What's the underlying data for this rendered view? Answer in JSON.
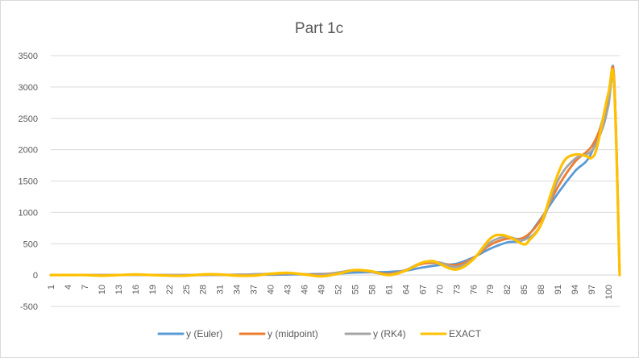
{
  "chart_data": {
    "type": "line",
    "title": "Part 1c",
    "xlabel": "",
    "ylabel": "",
    "x_tick_labels": [
      "1",
      "4",
      "7",
      "10",
      "13",
      "16",
      "19",
      "22",
      "25",
      "28",
      "31",
      "34",
      "37",
      "40",
      "43",
      "46",
      "49",
      "52",
      "55",
      "58",
      "61",
      "64",
      "67",
      "70",
      "73",
      "76",
      "79",
      "82",
      "85",
      "88",
      "91",
      "94",
      "97",
      "100"
    ],
    "x_tick_positions": [
      1,
      4,
      7,
      10,
      13,
      16,
      19,
      22,
      25,
      28,
      31,
      34,
      37,
      40,
      43,
      46,
      49,
      52,
      55,
      58,
      61,
      64,
      67,
      70,
      73,
      76,
      79,
      82,
      85,
      88,
      91,
      94,
      97,
      100
    ],
    "xlim": [
      1,
      102
    ],
    "ylim": [
      -500,
      3500
    ],
    "y_ticks": [
      -500,
      0,
      500,
      1000,
      1500,
      2000,
      2500,
      3000,
      3500
    ],
    "y_tick_labels": [
      "-500",
      "0",
      "500",
      "1000",
      "1500",
      "2000",
      "2500",
      "3000",
      "3500"
    ],
    "grid": true,
    "legend_position": "bottom",
    "series": [
      {
        "name": "y (Euler)",
        "color": "#5b9bd5",
        "x": [
          1,
          10,
          20,
          30,
          40,
          44,
          48,
          52,
          55,
          58,
          61,
          64,
          67,
          70,
          73,
          76,
          79,
          82,
          85,
          88,
          91,
          94,
          97,
          100,
          101,
          102
        ],
        "y": [
          0,
          0,
          0,
          0,
          5,
          10,
          15,
          25,
          40,
          45,
          50,
          70,
          120,
          160,
          180,
          280,
          420,
          520,
          570,
          900,
          1300,
          1650,
          1950,
          2800,
          3150,
          0
        ]
      },
      {
        "name": "y (midpoint)",
        "color": "#ed7d31",
        "x": [
          1,
          10,
          20,
          30,
          40,
          44,
          48,
          52,
          55,
          58,
          61,
          64,
          67,
          70,
          73,
          76,
          79,
          82,
          85,
          88,
          91,
          94,
          97,
          99,
          100,
          101,
          102
        ],
        "y": [
          0,
          0,
          0,
          0,
          15,
          25,
          5,
          40,
          75,
          50,
          20,
          80,
          180,
          190,
          160,
          270,
          480,
          580,
          600,
          880,
          1400,
          1800,
          2050,
          2450,
          2800,
          3150,
          0
        ]
      },
      {
        "name": "y (RK4)",
        "color": "#a5a5a5",
        "x": [
          1,
          10,
          20,
          30,
          40,
          44,
          48,
          52,
          55,
          58,
          61,
          64,
          67,
          70,
          73,
          76,
          79,
          82,
          85,
          88,
          91,
          94,
          97,
          99,
          100,
          101,
          102
        ],
        "y": [
          0,
          0,
          0,
          0,
          20,
          25,
          -5,
          40,
          80,
          45,
          10,
          80,
          200,
          200,
          130,
          260,
          520,
          610,
          560,
          800,
          1500,
          1850,
          1980,
          2350,
          2700,
          3050,
          0
        ]
      },
      {
        "name": "EXACT",
        "color": "#ffc000",
        "x": [
          1,
          4,
          7,
          10,
          13,
          16,
          19,
          22,
          25,
          28,
          31,
          34,
          37,
          40,
          43,
          46,
          49,
          52,
          55,
          58,
          61,
          64,
          67,
          69,
          70,
          73,
          76,
          79,
          81,
          83,
          85,
          86,
          88,
          90,
          92,
          94,
          96,
          97,
          98,
          100,
          101,
          102
        ],
        "y": [
          0,
          0,
          0,
          -10,
          0,
          10,
          0,
          -10,
          -10,
          10,
          10,
          -10,
          -10,
          20,
          35,
          10,
          -20,
          20,
          80,
          60,
          0,
          70,
          200,
          220,
          180,
          90,
          250,
          580,
          640,
          580,
          490,
          560,
          800,
          1350,
          1800,
          1920,
          1900,
          1870,
          2050,
          2900,
          3050,
          0
        ]
      }
    ]
  }
}
